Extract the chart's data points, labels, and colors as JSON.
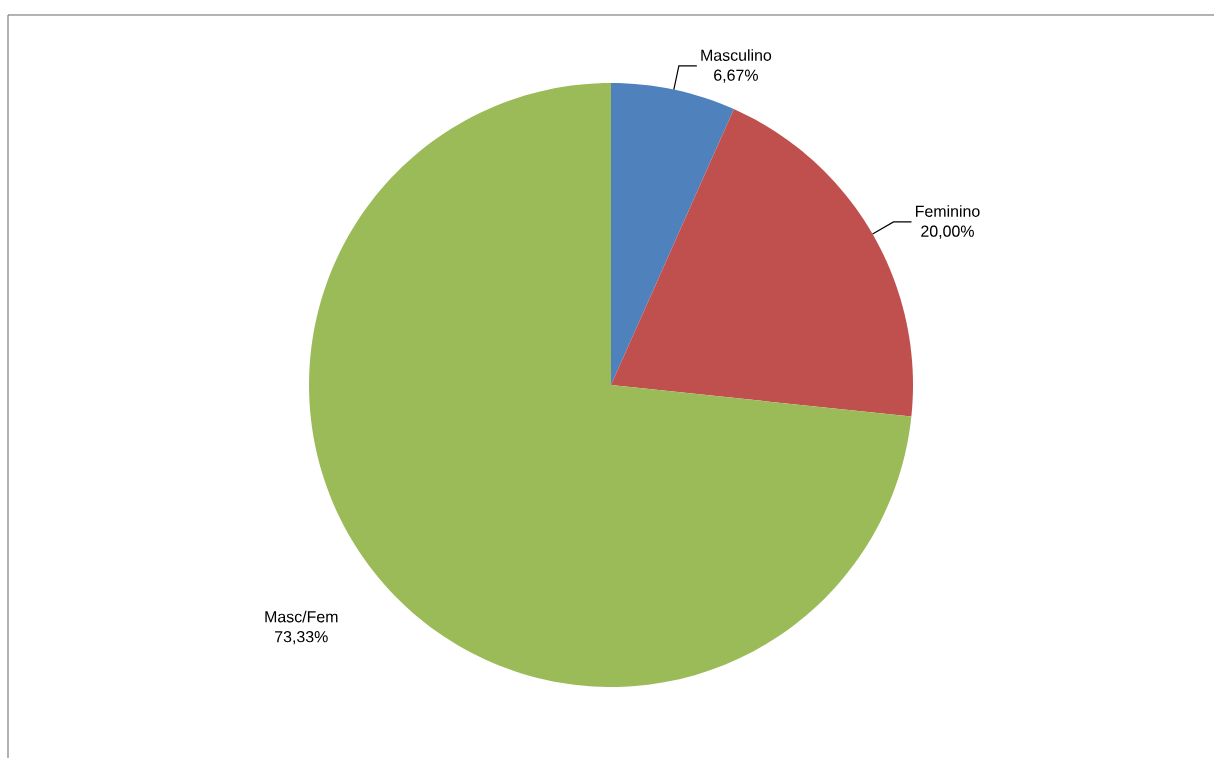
{
  "chart_data": {
    "type": "pie",
    "categories": [
      "Masculino",
      "Feminino",
      "Masc/Fem"
    ],
    "values": [
      6.67,
      20.0,
      73.33
    ],
    "colors": [
      "#4f81bd",
      "#c0504d",
      "#9bbb59"
    ],
    "value_labels": [
      "6,67%",
      "20,00%",
      "73,33%"
    ]
  }
}
